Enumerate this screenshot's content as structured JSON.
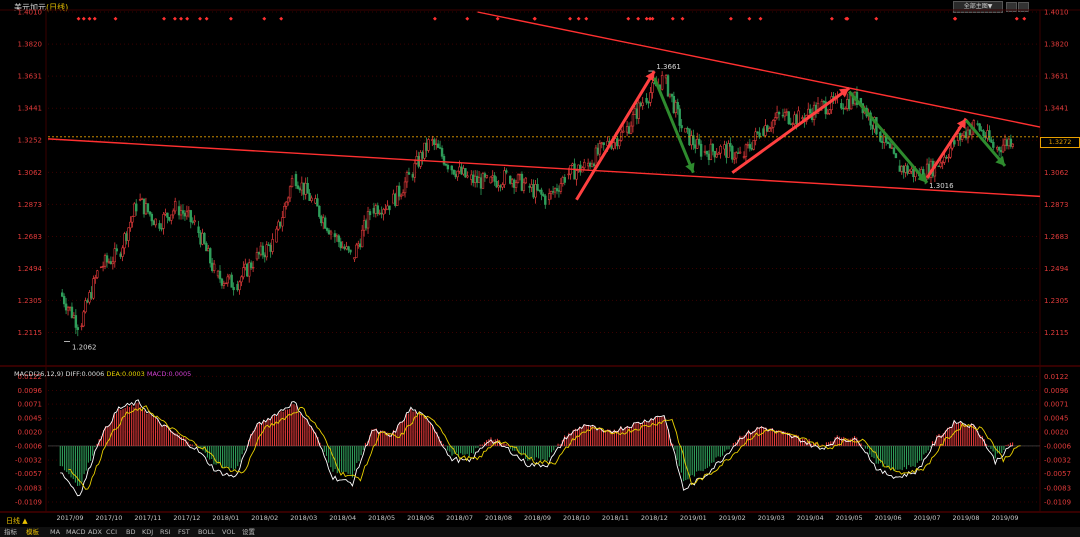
{
  "header": {
    "title": "美元加元",
    "period": "(日线)",
    "dropdown_label": "全部主图▼"
  },
  "colors": {
    "up": "#e03a3a",
    "down": "#2f9e5a",
    "trend": "#ff3030",
    "dif": "#ffffff",
    "dea": "#e8d000",
    "axis_text": "#e03a3a",
    "grid": "#3a0000"
  },
  "chart_data": [
    {
      "type": "candlestick",
      "title": "美元加元(日线)",
      "y_ticks": [
        "1.4010",
        "1.3820",
        "1.3631",
        "1.3441",
        "1.3252",
        "1.3062",
        "1.2873",
        "1.2683",
        "1.2494",
        "1.2305",
        "1.2115"
      ],
      "ylim": [
        1.2,
        1.401
      ],
      "x_tick_labels": [
        "2017/09",
        "2017/10",
        "2017/11",
        "2017/12",
        "2018/01",
        "2018/02",
        "2018/03",
        "2018/04",
        "2018/05",
        "2018/06",
        "2018/07",
        "2018/08",
        "2018/09",
        "2018/10",
        "2018/11",
        "2018/12",
        "2019/01",
        "2019/02",
        "2019/03",
        "2019/04",
        "2019/05",
        "2019/06",
        "2019/07",
        "2019/08",
        "2019/09"
      ],
      "key_points": [
        {
          "date": "2017/09",
          "value": 1.2062,
          "label": "1.2062"
        },
        {
          "date": "2018/12",
          "value": 1.3661,
          "label": "1.3661"
        },
        {
          "date": "2019/07",
          "value": 1.3016,
          "label": "1.3016"
        }
      ],
      "close_series": [
        {
          "date": "2017/09",
          "value": 1.235
        },
        {
          "date": "2017/09",
          "value": 1.215
        },
        {
          "date": "2017/10",
          "value": 1.25
        },
        {
          "date": "2017/10",
          "value": 1.258
        },
        {
          "date": "2017/11",
          "value": 1.29
        },
        {
          "date": "2017/11",
          "value": 1.276
        },
        {
          "date": "2017/12",
          "value": 1.286
        },
        {
          "date": "2017/12",
          "value": 1.274
        },
        {
          "date": "2018/01",
          "value": 1.245
        },
        {
          "date": "2018/01",
          "value": 1.24
        },
        {
          "date": "2018/02",
          "value": 1.255
        },
        {
          "date": "2018/02",
          "value": 1.265
        },
        {
          "date": "2018/03",
          "value": 1.305
        },
        {
          "date": "2018/03",
          "value": 1.288
        },
        {
          "date": "2018/04",
          "value": 1.27
        },
        {
          "date": "2018/04",
          "value": 1.255
        },
        {
          "date": "2018/05",
          "value": 1.285
        },
        {
          "date": "2018/05",
          "value": 1.288
        },
        {
          "date": "2018/06",
          "value": 1.305
        },
        {
          "date": "2018/06",
          "value": 1.325
        },
        {
          "date": "2018/07",
          "value": 1.31
        },
        {
          "date": "2018/07",
          "value": 1.302
        },
        {
          "date": "2018/08",
          "value": 1.3
        },
        {
          "date": "2018/08",
          "value": 1.304
        },
        {
          "date": "2018/09",
          "value": 1.298
        },
        {
          "date": "2018/09",
          "value": 1.29
        },
        {
          "date": "2018/10",
          "value": 1.305
        },
        {
          "date": "2018/10",
          "value": 1.31
        },
        {
          "date": "2018/11",
          "value": 1.322
        },
        {
          "date": "2018/11",
          "value": 1.33
        },
        {
          "date": "2018/12",
          "value": 1.35
        },
        {
          "date": "2018/12",
          "value": 1.362
        },
        {
          "date": "2019/01",
          "value": 1.33
        },
        {
          "date": "2019/01",
          "value": 1.318
        },
        {
          "date": "2019/02",
          "value": 1.32
        },
        {
          "date": "2019/02",
          "value": 1.315
        },
        {
          "date": "2019/03",
          "value": 1.332
        },
        {
          "date": "2019/03",
          "value": 1.34
        },
        {
          "date": "2019/04",
          "value": 1.338
        },
        {
          "date": "2019/04",
          "value": 1.345
        },
        {
          "date": "2019/05",
          "value": 1.347
        },
        {
          "date": "2019/05",
          "value": 1.35
        },
        {
          "date": "2019/06",
          "value": 1.33
        },
        {
          "date": "2019/06",
          "value": 1.31
        },
        {
          "date": "2019/07",
          "value": 1.305
        },
        {
          "date": "2019/07",
          "value": 1.31
        },
        {
          "date": "2019/08",
          "value": 1.325
        },
        {
          "date": "2019/08",
          "value": 1.335
        },
        {
          "date": "2019/09",
          "value": 1.32
        },
        {
          "date": "2019/09",
          "value": 1.327
        }
      ],
      "current_price": "1.3272",
      "trendlines": [
        {
          "from": {
            "date": "2018/09",
            "value": 1.401
          },
          "to": {
            "date": "2019/09",
            "value": 1.333
          }
        },
        {
          "from": {
            "date": "2017/09",
            "value": 1.326
          },
          "to": {
            "date": "2019/09",
            "value": 1.292
          }
        }
      ]
    },
    {
      "type": "bar",
      "title": "MACD(26,12,9)",
      "indicator_values": {
        "DIFF": "DIFF:0.0006",
        "DEA": "DEA:0.0003",
        "MACD": "MACD:0.0005"
      },
      "y_ticks": [
        "0.0122",
        "0.0096",
        "0.0071",
        "0.0045",
        "0.0020",
        "-0.0006",
        "-0.0032",
        "-0.0057",
        "-0.0083",
        "-0.0109"
      ],
      "ylim": [
        -0.012,
        0.013
      ],
      "macd_series": [
        {
          "date": "2017/09",
          "value": -0.004
        },
        {
          "date": "2017/09",
          "value": -0.008
        },
        {
          "date": "2017/10",
          "value": 0.001
        },
        {
          "date": "2017/10",
          "value": 0.006
        },
        {
          "date": "2017/11",
          "value": 0.007
        },
        {
          "date": "2017/11",
          "value": 0.004
        },
        {
          "date": "2017/12",
          "value": 0.0015
        },
        {
          "date": "2017/12",
          "value": -0.0005
        },
        {
          "date": "2018/01",
          "value": -0.004
        },
        {
          "date": "2018/01",
          "value": -0.005
        },
        {
          "date": "2018/02",
          "value": 0.003
        },
        {
          "date": "2018/02",
          "value": 0.005
        },
        {
          "date": "2018/03",
          "value": 0.007
        },
        {
          "date": "2018/03",
          "value": 0.0025
        },
        {
          "date": "2018/04",
          "value": -0.005
        },
        {
          "date": "2018/04",
          "value": -0.006
        },
        {
          "date": "2018/05",
          "value": 0.0025
        },
        {
          "date": "2018/05",
          "value": 0.0015
        },
        {
          "date": "2018/06",
          "value": 0.006
        },
        {
          "date": "2018/06",
          "value": 0.004
        },
        {
          "date": "2018/07",
          "value": -0.002
        },
        {
          "date": "2018/07",
          "value": -0.0025
        },
        {
          "date": "2018/08",
          "value": 0.001
        },
        {
          "date": "2018/08",
          "value": -0.0005
        },
        {
          "date": "2018/09",
          "value": -0.003
        },
        {
          "date": "2018/09",
          "value": -0.003
        },
        {
          "date": "2018/10",
          "value": 0.0015
        },
        {
          "date": "2018/10",
          "value": 0.0035
        },
        {
          "date": "2018/11",
          "value": 0.002
        },
        {
          "date": "2018/11",
          "value": 0.003
        },
        {
          "date": "2018/12",
          "value": 0.004
        },
        {
          "date": "2018/12",
          "value": 0.005
        },
        {
          "date": "2019/01",
          "value": -0.007
        },
        {
          "date": "2019/01",
          "value": -0.005
        },
        {
          "date": "2019/02",
          "value": -0.002
        },
        {
          "date": "2019/02",
          "value": 0.0015
        },
        {
          "date": "2019/03",
          "value": 0.003
        },
        {
          "date": "2019/03",
          "value": 0.002
        },
        {
          "date": "2019/04",
          "value": 0.001
        },
        {
          "date": "2019/04",
          "value": -0.0005
        },
        {
          "date": "2019/05",
          "value": 0.0012
        },
        {
          "date": "2019/05",
          "value": 0.0008
        },
        {
          "date": "2019/06",
          "value": -0.004
        },
        {
          "date": "2019/06",
          "value": -0.005
        },
        {
          "date": "2019/07",
          "value": -0.004
        },
        {
          "date": "2019/07",
          "value": 0.001
        },
        {
          "date": "2019/08",
          "value": 0.004
        },
        {
          "date": "2019/08",
          "value": 0.003
        },
        {
          "date": "2019/09",
          "value": -0.0025
        },
        {
          "date": "2019/09",
          "value": 0.0005
        }
      ]
    }
  ],
  "footer": {
    "period_button": "日线 ▲",
    "tabs": [
      "指标",
      "模板",
      "MA",
      "MACD",
      "ADX",
      "CCI",
      "BD",
      "KDJ",
      "RSI",
      "FST",
      "BOLL",
      "VOL",
      "设置"
    ]
  }
}
